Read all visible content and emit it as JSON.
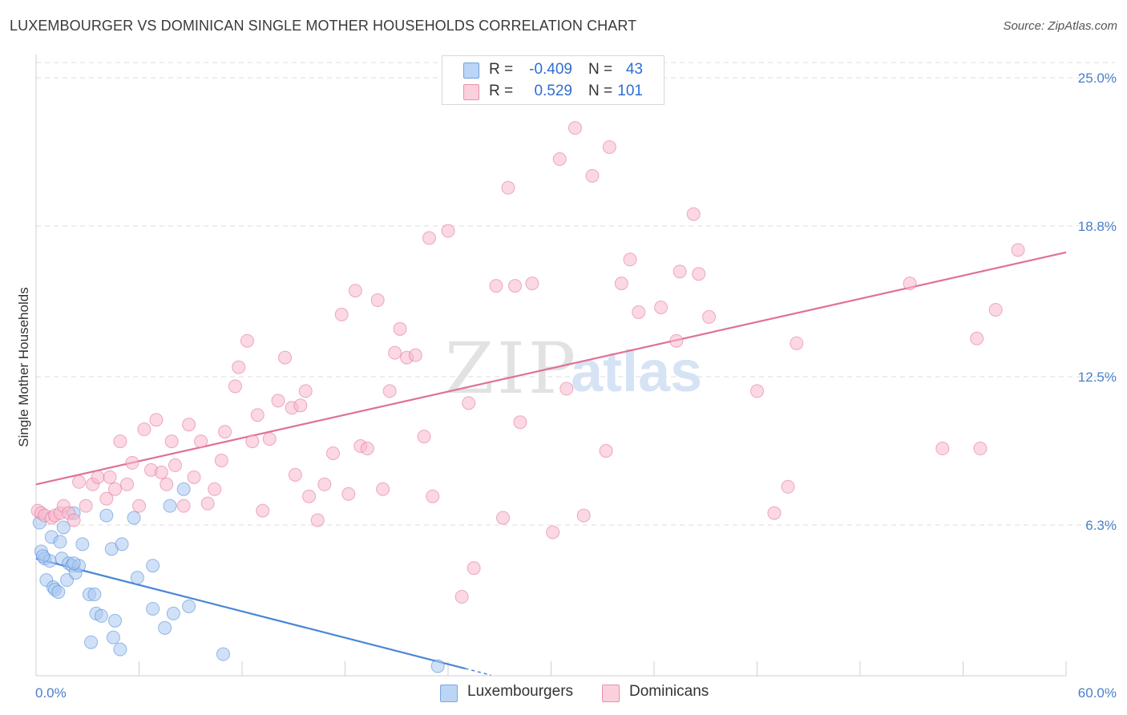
{
  "title": "LUXEMBOURGER VS DOMINICAN SINGLE MOTHER HOUSEHOLDS CORRELATION CHART",
  "source": "Source: ZipAtlas.com",
  "watermark": {
    "zip": "ZIP",
    "atlas": "atlas"
  },
  "legend": {
    "rows": [
      {
        "r_label": "R =",
        "r_value": "-0.409",
        "n_label": "N =",
        "n_value": "43",
        "color": "#aac8f0"
      },
      {
        "r_label": "R =",
        "r_value": "0.529",
        "n_label": "N =",
        "n_value": "101",
        "color": "#f7b8cc"
      }
    ]
  },
  "bottom_legend": [
    {
      "label": "Luxembourgers",
      "color": "#b9d3f5"
    },
    {
      "label": "Dominicans",
      "color": "#f9c6d5"
    }
  ],
  "chart_data": {
    "type": "scatter",
    "title": "LUXEMBOURGER VS DOMINICAN SINGLE MOTHER HOUSEHOLDS CORRELATION CHART",
    "xlabel": "",
    "ylabel": "Single Mother Households",
    "xlim": [
      0,
      60
    ],
    "ylim": [
      0,
      25
    ],
    "x_tick_labels": [
      "0.0%",
      "60.0%"
    ],
    "y_ticks": [
      6.3,
      12.5,
      18.8,
      25.0
    ],
    "y_tick_labels": [
      "6.3%",
      "12.5%",
      "18.8%",
      "25.0%"
    ],
    "grid": true,
    "legend_position": "top-center",
    "series": [
      {
        "name": "Luxembourgers",
        "color": "#4a86d8",
        "fill": "#aac8f0",
        "trend": {
          "x": [
            0,
            25
          ],
          "y": [
            4.9,
            0.3
          ],
          "dashed_to": 26.5
        },
        "points": [
          [
            0.2,
            6.4
          ],
          [
            0.3,
            5.2
          ],
          [
            0.5,
            4.9
          ],
          [
            0.6,
            4.0
          ],
          [
            0.8,
            4.8
          ],
          [
            0.9,
            5.8
          ],
          [
            1.0,
            3.7
          ],
          [
            1.1,
            3.6
          ],
          [
            1.3,
            3.5
          ],
          [
            1.4,
            5.6
          ],
          [
            1.5,
            4.9
          ],
          [
            1.6,
            6.2
          ],
          [
            1.8,
            4.0
          ],
          [
            1.9,
            4.7
          ],
          [
            2.1,
            4.6
          ],
          [
            2.2,
            6.8
          ],
          [
            2.3,
            4.3
          ],
          [
            2.5,
            4.6
          ],
          [
            2.7,
            5.5
          ],
          [
            3.1,
            3.4
          ],
          [
            3.2,
            1.4
          ],
          [
            3.4,
            3.4
          ],
          [
            3.5,
            2.6
          ],
          [
            3.8,
            2.5
          ],
          [
            4.1,
            6.7
          ],
          [
            4.4,
            5.3
          ],
          [
            4.5,
            1.6
          ],
          [
            4.6,
            2.3
          ],
          [
            4.9,
            1.1
          ],
          [
            5.0,
            5.5
          ],
          [
            5.7,
            6.6
          ],
          [
            5.9,
            4.1
          ],
          [
            6.8,
            2.8
          ],
          [
            6.8,
            4.6
          ],
          [
            7.5,
            2.0
          ],
          [
            7.8,
            7.1
          ],
          [
            8.0,
            2.6
          ],
          [
            8.6,
            7.8
          ],
          [
            8.9,
            2.9
          ],
          [
            10.9,
            0.9
          ],
          [
            23.4,
            0.4
          ],
          [
            2.2,
            4.7
          ],
          [
            0.4,
            5.0
          ]
        ]
      },
      {
        "name": "Dominicans",
        "color": "#e07098",
        "fill": "#f7b8cc",
        "trend": {
          "x": [
            0,
            60
          ],
          "y": [
            8.0,
            17.7
          ]
        },
        "points": [
          [
            0.1,
            6.9
          ],
          [
            0.3,
            6.8
          ],
          [
            0.5,
            6.7
          ],
          [
            0.9,
            6.6
          ],
          [
            1.1,
            6.7
          ],
          [
            1.4,
            6.8
          ],
          [
            1.6,
            7.1
          ],
          [
            1.9,
            6.8
          ],
          [
            2.2,
            6.5
          ],
          [
            2.5,
            8.1
          ],
          [
            2.9,
            7.1
          ],
          [
            3.3,
            8.0
          ],
          [
            3.6,
            8.3
          ],
          [
            4.1,
            7.4
          ],
          [
            4.3,
            8.3
          ],
          [
            4.6,
            7.8
          ],
          [
            4.9,
            9.8
          ],
          [
            5.3,
            8.0
          ],
          [
            5.6,
            8.9
          ],
          [
            6.0,
            7.1
          ],
          [
            6.3,
            10.3
          ],
          [
            6.7,
            8.6
          ],
          [
            7.0,
            10.7
          ],
          [
            7.3,
            8.5
          ],
          [
            7.6,
            8.0
          ],
          [
            7.9,
            9.8
          ],
          [
            8.1,
            8.8
          ],
          [
            8.6,
            7.1
          ],
          [
            8.9,
            10.5
          ],
          [
            9.2,
            8.3
          ],
          [
            9.6,
            9.8
          ],
          [
            10.0,
            7.2
          ],
          [
            10.4,
            7.8
          ],
          [
            10.8,
            9.0
          ],
          [
            11.0,
            10.2
          ],
          [
            11.6,
            12.1
          ],
          [
            11.8,
            12.9
          ],
          [
            12.3,
            14.0
          ],
          [
            12.6,
            9.8
          ],
          [
            12.9,
            10.9
          ],
          [
            13.2,
            6.9
          ],
          [
            13.6,
            9.9
          ],
          [
            14.1,
            11.5
          ],
          [
            14.5,
            13.3
          ],
          [
            14.9,
            11.2
          ],
          [
            15.1,
            8.4
          ],
          [
            15.4,
            11.3
          ],
          [
            15.7,
            11.9
          ],
          [
            15.9,
            7.5
          ],
          [
            16.4,
            6.5
          ],
          [
            16.8,
            8.0
          ],
          [
            17.3,
            9.3
          ],
          [
            17.8,
            15.1
          ],
          [
            18.2,
            7.6
          ],
          [
            18.6,
            16.1
          ],
          [
            18.9,
            9.6
          ],
          [
            19.3,
            9.5
          ],
          [
            19.9,
            15.7
          ],
          [
            20.2,
            7.8
          ],
          [
            20.6,
            11.9
          ],
          [
            20.9,
            13.5
          ],
          [
            21.2,
            14.5
          ],
          [
            21.6,
            13.3
          ],
          [
            22.1,
            13.4
          ],
          [
            22.6,
            10.0
          ],
          [
            22.9,
            18.3
          ],
          [
            23.1,
            7.5
          ],
          [
            24.0,
            18.6
          ],
          [
            24.8,
            3.3
          ],
          [
            25.2,
            11.4
          ],
          [
            25.5,
            4.5
          ],
          [
            26.8,
            16.3
          ],
          [
            27.2,
            6.6
          ],
          [
            27.5,
            20.4
          ],
          [
            27.9,
            16.3
          ],
          [
            28.2,
            10.6
          ],
          [
            28.9,
            16.4
          ],
          [
            30.1,
            6.0
          ],
          [
            30.5,
            21.6
          ],
          [
            30.9,
            12.0
          ],
          [
            31.4,
            22.9
          ],
          [
            31.9,
            6.7
          ],
          [
            32.4,
            20.9
          ],
          [
            33.2,
            9.4
          ],
          [
            33.4,
            22.1
          ],
          [
            34.1,
            16.4
          ],
          [
            34.6,
            17.4
          ],
          [
            35.1,
            15.2
          ],
          [
            36.4,
            15.4
          ],
          [
            37.3,
            14.0
          ],
          [
            37.5,
            16.9
          ],
          [
            38.3,
            19.3
          ],
          [
            38.6,
            16.8
          ],
          [
            39.2,
            15.0
          ],
          [
            42.0,
            11.9
          ],
          [
            43.0,
            6.8
          ],
          [
            43.8,
            7.9
          ],
          [
            44.3,
            13.9
          ],
          [
            50.9,
            16.4
          ],
          [
            52.8,
            9.5
          ],
          [
            55.0,
            9.5
          ]
        ]
      },
      {
        "name": "Dominicans-extra",
        "color": "#e07098",
        "fill": "#f7b8cc",
        "points": [
          [
            54.8,
            14.1
          ],
          [
            55.9,
            15.3
          ],
          [
            57.2,
            17.8
          ]
        ]
      }
    ]
  }
}
